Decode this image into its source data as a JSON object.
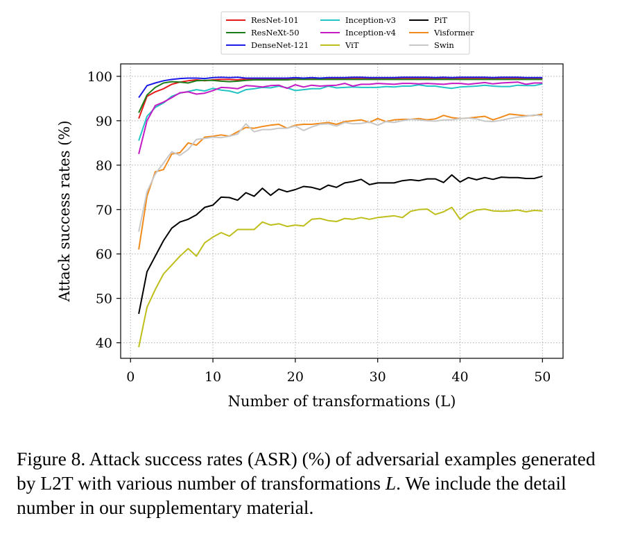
{
  "chart_data": {
    "type": "line",
    "xlabel": "Number of transformations (L)",
    "ylabel": "Attack success rates (%)",
    "xlim": [
      -1.2,
      52.5
    ],
    "ylim": [
      36.5,
      102.8
    ],
    "xticks": [
      0,
      10,
      20,
      30,
      40,
      50
    ],
    "yticks": [
      40,
      50,
      60,
      70,
      80,
      90,
      100
    ],
    "grid": true,
    "legend_position": "top-center (above plot)",
    "x": [
      1,
      2,
      3,
      4,
      5,
      6,
      7,
      8,
      9,
      10,
      11,
      12,
      13,
      14,
      15,
      16,
      17,
      18,
      19,
      20,
      21,
      22,
      23,
      24,
      25,
      26,
      27,
      28,
      29,
      30,
      31,
      32,
      33,
      34,
      35,
      36,
      37,
      38,
      39,
      40,
      41,
      42,
      43,
      44,
      45,
      46,
      47,
      48,
      49,
      50
    ],
    "series": [
      {
        "name": "ResNet-101",
        "color": "#e41a1a",
        "values": [
          90.5,
          95.5,
          96.5,
          97.2,
          98.2,
          98.7,
          99.0,
          99.2,
          99.0,
          99.2,
          99.3,
          99.3,
          99.2,
          99.4,
          99.4,
          99.4,
          99.4,
          99.4,
          99.4,
          99.4,
          99.4,
          99.4,
          99.5,
          99.5,
          99.5,
          99.5,
          99.5,
          99.5,
          99.5,
          99.5,
          99.5,
          99.5,
          99.5,
          99.5,
          99.5,
          99.5,
          99.5,
          99.5,
          99.5,
          99.5,
          99.5,
          99.5,
          99.5,
          99.5,
          99.5,
          99.5,
          99.5,
          99.5,
          99.5,
          99.5
        ]
      },
      {
        "name": "ResNeXt-50",
        "color": "#1a7d1a",
        "values": [
          91.8,
          95.8,
          97.5,
          98.5,
          98.8,
          98.7,
          98.5,
          99.0,
          99.1,
          99.1,
          98.9,
          98.8,
          98.9,
          99.1,
          99.2,
          99.2,
          99.2,
          99.2,
          99.2,
          99.3,
          99.3,
          99.3,
          99.3,
          99.3,
          99.3,
          99.3,
          99.3,
          99.3,
          99.3,
          99.3,
          99.3,
          99.3,
          99.3,
          99.3,
          99.3,
          99.3,
          99.3,
          99.3,
          99.3,
          99.3,
          99.3,
          99.3,
          99.3,
          99.3,
          99.3,
          99.3,
          99.3,
          99.3,
          99.3,
          99.3
        ]
      },
      {
        "name": "DenseNet-121",
        "color": "#1a1ae6",
        "values": [
          95.2,
          97.9,
          98.5,
          99.0,
          99.3,
          99.5,
          99.6,
          99.6,
          99.5,
          99.7,
          99.8,
          99.7,
          99.8,
          99.6,
          99.6,
          99.6,
          99.6,
          99.6,
          99.6,
          99.7,
          99.6,
          99.7,
          99.6,
          99.7,
          99.7,
          99.7,
          99.8,
          99.8,
          99.7,
          99.7,
          99.7,
          99.7,
          99.8,
          99.8,
          99.8,
          99.8,
          99.7,
          99.8,
          99.7,
          99.8,
          99.8,
          99.8,
          99.8,
          99.7,
          99.8,
          99.8,
          99.8,
          99.7,
          99.7,
          99.7
        ]
      },
      {
        "name": "Inception-v3",
        "color": "#22c4c4",
        "values": [
          85.5,
          91.0,
          93.0,
          94.0,
          95.5,
          96.2,
          96.6,
          97.0,
          96.7,
          97.3,
          96.9,
          96.7,
          96.2,
          97.0,
          97.2,
          97.5,
          97.4,
          97.8,
          97.4,
          96.8,
          97.0,
          97.2,
          97.2,
          97.8,
          97.4,
          97.5,
          97.6,
          97.5,
          97.5,
          97.5,
          97.7,
          97.6,
          97.8,
          97.8,
          98.1,
          97.8,
          97.8,
          97.5,
          97.3,
          97.6,
          97.7,
          97.8,
          98.0,
          97.8,
          97.7,
          97.7,
          98.0,
          97.9,
          97.9,
          98.3
        ]
      },
      {
        "name": "Inception-v4",
        "color": "#c41ac4",
        "values": [
          82.5,
          90.0,
          93.4,
          94.2,
          95.2,
          96.3,
          96.5,
          96.0,
          96.2,
          96.8,
          97.5,
          97.4,
          97.2,
          97.9,
          97.8,
          97.6,
          97.9,
          98.0,
          97.3,
          98.1,
          97.6,
          98.0,
          97.8,
          97.9,
          98.0,
          98.4,
          97.8,
          98.2,
          98.2,
          98.4,
          98.3,
          98.2,
          98.4,
          98.4,
          98.3,
          98.4,
          98.3,
          98.2,
          98.4,
          98.4,
          98.2,
          98.4,
          98.6,
          98.3,
          98.5,
          98.6,
          98.7,
          98.2,
          98.5,
          98.5
        ]
      },
      {
        "name": "ViT",
        "color": "#bebe1a",
        "values": [
          39.0,
          48.0,
          52.0,
          55.5,
          57.5,
          59.5,
          61.2,
          59.5,
          62.5,
          63.8,
          64.8,
          64.0,
          65.5,
          65.5,
          65.5,
          67.2,
          66.5,
          66.8,
          66.2,
          66.5,
          66.3,
          67.8,
          68.0,
          67.5,
          67.3,
          68.0,
          67.8,
          68.2,
          67.8,
          68.2,
          68.4,
          68.6,
          68.2,
          69.6,
          70.0,
          70.1,
          68.9,
          69.5,
          70.5,
          67.8,
          69.2,
          69.9,
          70.1,
          69.7,
          69.6,
          69.7,
          69.9,
          69.5,
          69.8,
          69.7
        ]
      },
      {
        "name": "PiT",
        "color": "#000000",
        "values": [
          46.5,
          56.0,
          59.5,
          63.0,
          65.8,
          67.2,
          67.8,
          68.8,
          70.5,
          71.0,
          72.8,
          72.7,
          72.1,
          73.8,
          73.0,
          74.8,
          73.2,
          74.6,
          74.0,
          74.5,
          75.2,
          75.0,
          74.5,
          75.5,
          75.0,
          76.0,
          76.3,
          76.8,
          75.6,
          76.0,
          76.0,
          76.0,
          76.5,
          76.7,
          76.5,
          76.9,
          76.9,
          76.1,
          77.8,
          76.2,
          77.2,
          76.7,
          77.2,
          76.8,
          77.3,
          77.2,
          77.2,
          77.0,
          77.0,
          77.5
        ]
      },
      {
        "name": "Visformer",
        "color": "#f08a1a",
        "values": [
          61.0,
          73.0,
          78.5,
          79.0,
          82.5,
          82.8,
          85.0,
          84.5,
          86.3,
          86.5,
          86.8,
          86.5,
          87.5,
          88.5,
          88.3,
          88.7,
          89.0,
          89.2,
          88.3,
          89.0,
          89.2,
          89.2,
          89.4,
          89.6,
          89.2,
          89.8,
          90.0,
          90.2,
          89.6,
          90.5,
          89.8,
          90.2,
          90.3,
          90.3,
          90.5,
          90.2,
          90.4,
          91.2,
          90.7,
          90.5,
          90.6,
          90.8,
          91.0,
          90.2,
          90.8,
          91.5,
          91.3,
          91.1,
          91.2,
          91.5
        ]
      },
      {
        "name": "Swin",
        "color": "#c8c8c8",
        "values": [
          65.0,
          74.0,
          78.0,
          80.5,
          83.0,
          82.2,
          83.5,
          85.8,
          86.0,
          86.3,
          86.2,
          86.5,
          87.0,
          89.3,
          87.5,
          88.0,
          88.0,
          88.3,
          88.3,
          88.8,
          87.8,
          88.6,
          89.2,
          89.3,
          88.8,
          89.6,
          89.3,
          89.4,
          89.7,
          89.0,
          89.8,
          89.6,
          90.0,
          90.3,
          90.2,
          90.0,
          89.9,
          90.2,
          90.2,
          90.5,
          90.6,
          90.4,
          89.9,
          89.8,
          90.1,
          90.5,
          90.8,
          91.0,
          91.3,
          91.1
        ]
      }
    ]
  },
  "caption": {
    "text_before": "Figure 8. Attack success rates (ASR) (%) of adversarial examples generated by L2T with various number of transformations ",
    "symbol": "L",
    "text_after": ". We include the detail number in our supplementary material."
  }
}
